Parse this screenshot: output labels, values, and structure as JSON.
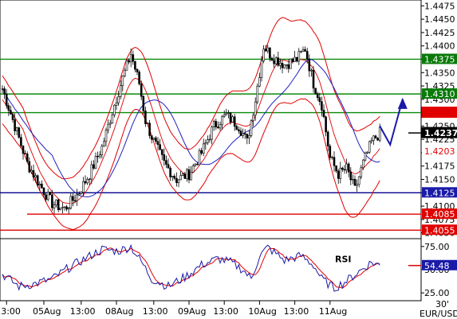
{
  "chart_data": [
    {
      "type": "candlestick",
      "symbol": "EUR/USD",
      "timeframe": "30'",
      "y_ticks": [
        "1.4475",
        "1.4450",
        "1.4425",
        "1.4400",
        "1.4375",
        "1.4350",
        "1.4325",
        "1.4300",
        "1.4275",
        "1.4250",
        "1.4225",
        "1.4200",
        "1.4175",
        "1.4150",
        "1.4125",
        "1.4100",
        "1.4075",
        "1.4050"
      ],
      "ylim": [
        1.4045,
        1.448
      ],
      "x_ticks": [
        {
          "label": "13:00",
          "i": 2
        },
        {
          "label": "05Aug",
          "i": 20
        },
        {
          "label": "13:00",
          "i": 38
        },
        {
          "label": "08Aug",
          "i": 55
        },
        {
          "label": "13:00",
          "i": 73
        },
        {
          "label": "09Aug",
          "i": 90
        },
        {
          "label": "13:00",
          "i": 107
        },
        {
          "label": "10Aug",
          "i": 124
        },
        {
          "label": "13:00",
          "i": 141
        },
        {
          "label": "11Aug",
          "i": 158
        }
      ],
      "levels": [
        {
          "value": 1.4375,
          "label": "1.4375",
          "color": "#0a8a0a",
          "bg": "#0a7a0a"
        },
        {
          "value": 1.431,
          "label": "1.4310",
          "color": "#0a8a0a",
          "bg": "#0a7a0a"
        },
        {
          "value": 1.4275,
          "label": "1.4275",
          "color": "#0a8a0a",
          "bg": "#0a7a0a"
        },
        {
          "value": 1.4125,
          "label": "1.4125",
          "color": "#00008b",
          "bg": "#1a1aa8"
        },
        {
          "value": 1.4085,
          "label": "1.4085",
          "color": "#e00000",
          "bg": "#e00000"
        },
        {
          "value": 1.4055,
          "label": "1.4055",
          "color": "#e00000",
          "bg": "#e00000"
        }
      ],
      "markers": [
        {
          "value": 1.4237,
          "label": "1.4237",
          "bg": "#000000",
          "fg": "#ffffff",
          "role": "current-price"
        },
        {
          "value": 1.4203,
          "label": "1.4203",
          "bg": "#ffffff",
          "fg": "#e00000",
          "role": "band-value"
        },
        {
          "value": 1.4275,
          "label": "",
          "bg": "#e00000",
          "fg": "#ffffff",
          "role": "band-value"
        }
      ],
      "close_waypoints": [
        [
          0,
          1.432
        ],
        [
          6,
          1.425
        ],
        [
          12,
          1.418
        ],
        [
          18,
          1.414
        ],
        [
          24,
          1.4105
        ],
        [
          30,
          1.4095
        ],
        [
          36,
          1.412
        ],
        [
          42,
          1.416
        ],
        [
          48,
          1.421
        ],
        [
          54,
          1.429
        ],
        [
          58,
          1.434
        ],
        [
          62,
          1.4385
        ],
        [
          66,
          1.433
        ],
        [
          69,
          1.426
        ],
        [
          72,
          1.423
        ],
        [
          78,
          1.418
        ],
        [
          84,
          1.415
        ],
        [
          90,
          1.416
        ],
        [
          96,
          1.42
        ],
        [
          102,
          1.425
        ],
        [
          108,
          1.427
        ],
        [
          114,
          1.425
        ],
        [
          118,
          1.422
        ],
        [
          122,
          1.43
        ],
        [
          126,
          1.44
        ],
        [
          130,
          1.438
        ],
        [
          136,
          1.4365
        ],
        [
          142,
          1.4375
        ],
        [
          146,
          1.4395
        ],
        [
          150,
          1.433
        ],
        [
          154,
          1.429
        ],
        [
          158,
          1.419
        ],
        [
          162,
          1.416
        ],
        [
          166,
          1.417
        ],
        [
          170,
          1.413
        ],
        [
          174,
          1.418
        ],
        [
          178,
          1.422
        ],
        [
          182,
          1.4237
        ]
      ],
      "bollinger_width": [
        [
          0,
          0.0045
        ],
        [
          20,
          0.0035
        ],
        [
          40,
          0.0055
        ],
        [
          60,
          0.006
        ],
        [
          80,
          0.005
        ],
        [
          100,
          0.0045
        ],
        [
          120,
          0.007
        ],
        [
          135,
          0.008
        ],
        [
          150,
          0.007
        ],
        [
          165,
          0.009
        ],
        [
          182,
          0.006
        ]
      ],
      "projection": [
        [
          182,
          1.425
        ],
        [
          187,
          1.4215
        ],
        [
          193,
          1.43
        ]
      ]
    },
    {
      "type": "line",
      "title": "RSI",
      "y_ticks": [
        "75.00",
        "50.00",
        "25.00"
      ],
      "ylim": [
        20,
        80
      ],
      "current_value": "54.48",
      "rsi_waypoints": [
        [
          0,
          45
        ],
        [
          8,
          32
        ],
        [
          16,
          35
        ],
        [
          24,
          40
        ],
        [
          32,
          52
        ],
        [
          40,
          62
        ],
        [
          48,
          72
        ],
        [
          56,
          70
        ],
        [
          62,
          75
        ],
        [
          68,
          55
        ],
        [
          72,
          40
        ],
        [
          80,
          32
        ],
        [
          88,
          42
        ],
        [
          96,
          55
        ],
        [
          104,
          62
        ],
        [
          110,
          58
        ],
        [
          116,
          50
        ],
        [
          120,
          40
        ],
        [
          124,
          65
        ],
        [
          128,
          74
        ],
        [
          136,
          60
        ],
        [
          144,
          65
        ],
        [
          150,
          55
        ],
        [
          154,
          40
        ],
        [
          160,
          30
        ],
        [
          166,
          38
        ],
        [
          172,
          48
        ],
        [
          178,
          58
        ],
        [
          182,
          54.48
        ]
      ]
    }
  ]
}
